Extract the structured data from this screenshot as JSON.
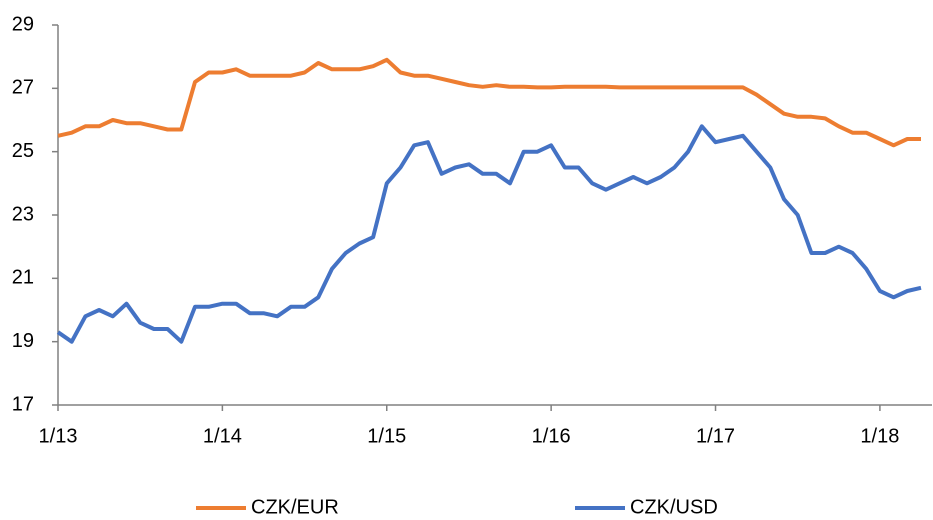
{
  "chart_data": {
    "type": "line",
    "categories": [
      "1/13",
      null,
      null,
      null,
      null,
      null,
      null,
      null,
      null,
      null,
      null,
      null,
      "1/14",
      null,
      null,
      null,
      null,
      null,
      null,
      null,
      null,
      null,
      null,
      null,
      "1/15",
      null,
      null,
      null,
      null,
      null,
      null,
      null,
      null,
      null,
      null,
      null,
      "1/16",
      null,
      null,
      null,
      null,
      null,
      null,
      null,
      null,
      null,
      null,
      null,
      "1/17",
      null,
      null,
      null,
      null,
      null,
      null,
      null,
      null,
      null,
      null,
      null,
      "1/18",
      null,
      null,
      null
    ],
    "series": [
      {
        "name": "CZK/EUR",
        "color": "#ed7d31",
        "values": [
          25.5,
          25.6,
          25.8,
          25.8,
          26.0,
          25.9,
          25.9,
          25.8,
          25.7,
          25.7,
          27.2,
          27.5,
          27.5,
          27.6,
          27.4,
          27.4,
          27.4,
          27.4,
          27.5,
          27.8,
          27.6,
          27.6,
          27.6,
          27.7,
          27.9,
          27.5,
          27.4,
          27.4,
          27.3,
          27.2,
          27.1,
          27.05,
          27.1,
          27.05,
          27.05,
          27.03,
          27.03,
          27.05,
          27.05,
          27.05,
          27.05,
          27.03,
          27.03,
          27.03,
          27.03,
          27.03,
          27.03,
          27.03,
          27.03,
          27.03,
          27.03,
          26.8,
          26.5,
          26.2,
          26.1,
          26.1,
          26.05,
          25.8,
          25.6,
          25.6,
          25.4,
          25.2,
          25.4,
          25.4
        ]
      },
      {
        "name": "CZK/USD",
        "color": "#4472c4",
        "values": [
          19.3,
          19.0,
          19.8,
          20.0,
          19.8,
          20.2,
          19.6,
          19.4,
          19.4,
          19.0,
          20.1,
          20.1,
          20.2,
          20.2,
          19.9,
          19.9,
          19.8,
          20.1,
          20.1,
          20.4,
          21.3,
          21.8,
          22.1,
          22.3,
          24.0,
          24.5,
          25.2,
          25.3,
          24.3,
          24.5,
          24.6,
          24.3,
          24.3,
          24.0,
          25.0,
          25.0,
          25.2,
          24.5,
          24.5,
          24.0,
          23.8,
          24.0,
          24.2,
          24.0,
          24.2,
          24.5,
          25.0,
          25.8,
          25.3,
          25.4,
          25.5,
          25.0,
          24.5,
          23.5,
          23.0,
          21.8,
          21.8,
          22.0,
          21.8,
          21.3,
          20.6,
          20.4,
          20.6,
          20.7
        ]
      }
    ],
    "ylim": [
      17,
      29
    ],
    "yticks": [
      17,
      19,
      21,
      23,
      25,
      27,
      29
    ],
    "legend": "bottom"
  }
}
